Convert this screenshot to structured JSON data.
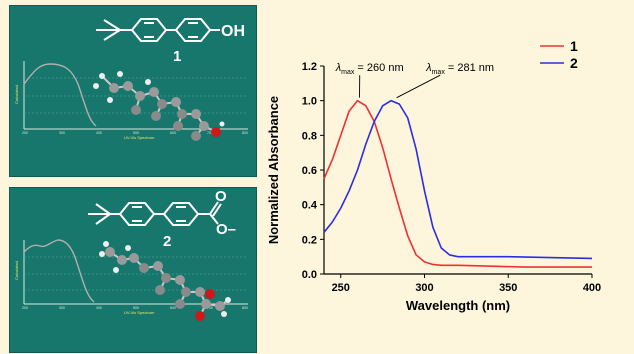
{
  "panels": [
    {
      "compound_number": "1",
      "substituent_label": "OH",
      "spectrum_ylabel": "Calculated",
      "spectrum_xlabel": "UV-Vis Spectrum",
      "spectrum_ticks": [
        "200",
        "300",
        "400",
        "500",
        "600",
        "700",
        "800"
      ]
    },
    {
      "compound_number": "2",
      "substituent_label": "O–",
      "carbonyl_o_label": "O",
      "spectrum_ylabel": "Calculated",
      "spectrum_xlabel": "UV-Vis Spectrum",
      "spectrum_ticks": [
        "200",
        "300",
        "400",
        "500",
        "600",
        "700",
        "800"
      ]
    }
  ],
  "chart_data": {
    "type": "line",
    "xlabel": "Wavelength (nm)",
    "ylabel": "Normalized Absorbance",
    "xlim": [
      240,
      400
    ],
    "ylim": [
      0,
      1.2
    ],
    "x_ticks": [
      250,
      300,
      350,
      400
    ],
    "y_ticks": [
      0.0,
      0.2,
      0.4,
      0.6,
      0.8,
      1.0,
      1.2
    ],
    "grid": false,
    "legend": "top-right",
    "series": [
      {
        "name": "1",
        "color": "#f03030",
        "x": [
          240,
          245,
          250,
          255,
          260,
          265,
          270,
          275,
          280,
          285,
          290,
          295,
          300,
          305,
          310,
          320,
          340,
          360,
          380,
          400
        ],
        "y": [
          0.55,
          0.66,
          0.8,
          0.94,
          1.0,
          0.97,
          0.88,
          0.73,
          0.55,
          0.38,
          0.22,
          0.11,
          0.07,
          0.055,
          0.05,
          0.05,
          0.045,
          0.04,
          0.04,
          0.04
        ]
      },
      {
        "name": "2",
        "color": "#2b2be8",
        "x": [
          240,
          245,
          250,
          255,
          260,
          265,
          270,
          275,
          280,
          285,
          290,
          295,
          300,
          305,
          310,
          315,
          320,
          330,
          350,
          375,
          400
        ],
        "y": [
          0.24,
          0.3,
          0.38,
          0.48,
          0.6,
          0.75,
          0.88,
          0.97,
          1.0,
          0.98,
          0.9,
          0.72,
          0.48,
          0.27,
          0.15,
          0.11,
          0.1,
          0.1,
          0.1,
          0.095,
          0.09
        ]
      }
    ],
    "annotations": [
      {
        "symbol": "λ",
        "subscript": "max",
        "text": " = 260 nm",
        "points_to": [
          260,
          1.0
        ]
      },
      {
        "symbol": "λ",
        "subscript": "max",
        "text": " = 281 nm",
        "points_to": [
          281,
          1.0
        ]
      }
    ]
  }
}
